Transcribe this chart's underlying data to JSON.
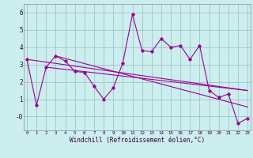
{
  "xlabel": "Windchill (Refroidissement éolien,°C)",
  "bg_color": "#bbeebb",
  "plot_bg": "#cceeee",
  "line_color": "#990099",
  "grid_color": "#99bbbb",
  "spine_color": "#8888aa",
  "main_x": [
    0,
    1,
    2,
    3,
    4,
    5,
    6,
    7,
    8,
    9,
    10,
    11,
    12,
    13,
    14,
    15,
    16,
    17,
    18,
    19,
    20,
    21,
    22,
    23
  ],
  "main_y": [
    3.3,
    0.65,
    2.85,
    3.5,
    3.2,
    2.6,
    2.55,
    1.75,
    1.0,
    1.65,
    3.1,
    5.9,
    3.8,
    3.75,
    4.5,
    4.0,
    4.1,
    3.3,
    4.1,
    1.5,
    1.1,
    1.3,
    -0.4,
    -0.1
  ],
  "trend1_x": [
    0,
    23
  ],
  "trend1_y": [
    3.3,
    1.5
  ],
  "trend2_x": [
    2,
    23
  ],
  "trend2_y": [
    2.85,
    1.5
  ],
  "trend3_x": [
    3,
    23
  ],
  "trend3_y": [
    3.5,
    0.55
  ],
  "ylim": [
    -0.8,
    6.5
  ],
  "xlim": [
    -0.3,
    23.3
  ],
  "yticks": [
    0,
    1,
    2,
    3,
    4,
    5,
    6
  ],
  "ytick_labels": [
    "-0",
    "1",
    "2",
    "3",
    "4",
    "5",
    "6"
  ],
  "xticks": [
    0,
    1,
    2,
    3,
    4,
    5,
    6,
    7,
    8,
    9,
    10,
    11,
    12,
    13,
    14,
    15,
    16,
    17,
    18,
    19,
    20,
    21,
    22,
    23
  ]
}
